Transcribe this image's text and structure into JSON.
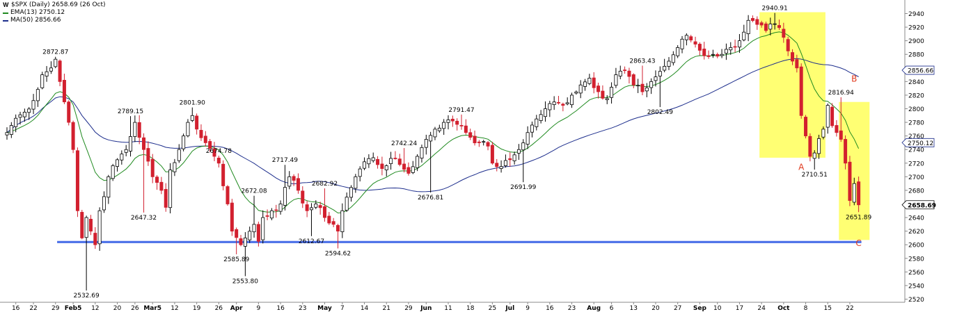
{
  "header": {
    "title": "$SPX (Daily) 2658.69 (26 Oct)",
    "ema_label": "EMA(13) 2750.12",
    "ma_label": "MA(50) 2856.66",
    "chart_icon": "chart-w-icon"
  },
  "colors": {
    "up_candle": "#000000",
    "down_candle": "#d2202f",
    "ema": "#1f8a1f",
    "ma": "#1c2d8c",
    "support_line": "#4a6fe8",
    "highlight": "#ffff5a",
    "annotation": "#e03a1e",
    "grid_axis": "#888888"
  },
  "chart_data": {
    "type": "candlestick",
    "title": "$SPX (Daily) 2658.69 (26 Oct)",
    "ylim": [
      2510,
      2950
    ],
    "y_ticks": [
      2520,
      2540,
      2560,
      2580,
      2600,
      2620,
      2640,
      2660,
      2680,
      2700,
      2720,
      2740,
      2760,
      2780,
      2800,
      2820,
      2840,
      2860,
      2880,
      2900,
      2920,
      2940
    ],
    "x_ticks": [
      {
        "i": 2,
        "label": "16"
      },
      {
        "i": 6,
        "label": "22"
      },
      {
        "i": 11,
        "label": "29"
      },
      {
        "i": 15,
        "label": "Feb5",
        "bold": true
      },
      {
        "i": 20,
        "label": "12"
      },
      {
        "i": 25,
        "label": "20"
      },
      {
        "i": 29,
        "label": "26"
      },
      {
        "i": 33,
        "label": "Mar5",
        "bold": true
      },
      {
        "i": 38,
        "label": "12"
      },
      {
        "i": 43,
        "label": "19"
      },
      {
        "i": 48,
        "label": "26"
      },
      {
        "i": 52,
        "label": "Apr",
        "bold": true
      },
      {
        "i": 57,
        "label": "9"
      },
      {
        "i": 62,
        "label": "16"
      },
      {
        "i": 67,
        "label": "23"
      },
      {
        "i": 72,
        "label": "May",
        "bold": true
      },
      {
        "i": 76,
        "label": "7"
      },
      {
        "i": 81,
        "label": "14"
      },
      {
        "i": 86,
        "label": "21"
      },
      {
        "i": 91,
        "label": "29"
      },
      {
        "i": 95,
        "label": "Jun",
        "bold": true
      },
      {
        "i": 100,
        "label": "11"
      },
      {
        "i": 105,
        "label": "18"
      },
      {
        "i": 110,
        "label": "25"
      },
      {
        "i": 114,
        "label": "Jul",
        "bold": true
      },
      {
        "i": 118,
        "label": "9"
      },
      {
        "i": 123,
        "label": "16"
      },
      {
        "i": 128,
        "label": "23"
      },
      {
        "i": 133,
        "label": "Aug",
        "bold": true
      },
      {
        "i": 137,
        "label": "6"
      },
      {
        "i": 142,
        "label": "13"
      },
      {
        "i": 147,
        "label": "20"
      },
      {
        "i": 152,
        "label": "27"
      },
      {
        "i": 157,
        "label": "Sep",
        "bold": true
      },
      {
        "i": 161,
        "label": "10"
      },
      {
        "i": 166,
        "label": "17"
      },
      {
        "i": 171,
        "label": "24"
      },
      {
        "i": 176,
        "label": "Oct",
        "bold": true
      },
      {
        "i": 181,
        "label": "8"
      },
      {
        "i": 186,
        "label": "15"
      },
      {
        "i": 191,
        "label": "22"
      }
    ],
    "anchors": [
      [
        0,
        2765
      ],
      [
        2,
        2786
      ],
      [
        4,
        2795
      ],
      [
        6,
        2812
      ],
      [
        8,
        2850
      ],
      [
        10,
        2860
      ],
      [
        11,
        2872.87
      ],
      [
        12,
        2840
      ],
      [
        14,
        2780
      ],
      [
        15,
        2740
      ],
      [
        16,
        2650
      ],
      [
        17,
        2610
      ],
      [
        18,
        2640
      ],
      [
        19,
        2620
      ],
      [
        20,
        2600
      ],
      [
        21,
        2650
      ],
      [
        23,
        2700
      ],
      [
        25,
        2725
      ],
      [
        27,
        2740
      ],
      [
        29,
        2780
      ],
      [
        31,
        2740
      ],
      [
        33,
        2700
      ],
      [
        35,
        2680
      ],
      [
        36,
        2655
      ],
      [
        37,
        2710
      ],
      [
        39,
        2740
      ],
      [
        41,
        2780
      ],
      [
        42,
        2790
      ],
      [
        43,
        2770
      ],
      [
        45,
        2750
      ],
      [
        47,
        2730
      ],
      [
        48,
        2720
      ],
      [
        50,
        2660
      ],
      [
        51,
        2620
      ],
      [
        53,
        2600
      ],
      [
        54,
        2610
      ],
      [
        56,
        2630
      ],
      [
        57,
        2605
      ],
      [
        58,
        2640
      ],
      [
        60,
        2650
      ],
      [
        62,
        2660
      ],
      [
        64,
        2700
      ],
      [
        66,
        2680
      ],
      [
        68,
        2650
      ],
      [
        70,
        2660
      ],
      [
        72,
        2640
      ],
      [
        74,
        2630
      ],
      [
        75,
        2620
      ],
      [
        76,
        2650
      ],
      [
        77,
        2670
      ],
      [
        79,
        2700
      ],
      [
        81,
        2722
      ],
      [
        83,
        2728
      ],
      [
        85,
        2712
      ],
      [
        87,
        2727
      ],
      [
        89,
        2718
      ],
      [
        91,
        2705
      ],
      [
        93,
        2730
      ],
      [
        95,
        2755
      ],
      [
        97,
        2770
      ],
      [
        99,
        2780
      ],
      [
        101,
        2782
      ],
      [
        103,
        2775
      ],
      [
        105,
        2758
      ],
      [
        107,
        2750
      ],
      [
        109,
        2745
      ],
      [
        110,
        2720
      ],
      [
        112,
        2715
      ],
      [
        114,
        2725
      ],
      [
        116,
        2740
      ],
      [
        118,
        2765
      ],
      [
        120,
        2785
      ],
      [
        122,
        2800
      ],
      [
        124,
        2810
      ],
      [
        126,
        2805
      ],
      [
        128,
        2820
      ],
      [
        130,
        2835
      ],
      [
        132,
        2845
      ],
      [
        134,
        2825
      ],
      [
        136,
        2815
      ],
      [
        138,
        2850
      ],
      [
        140,
        2857
      ],
      [
        142,
        2835
      ],
      [
        144,
        2825
      ],
      [
        146,
        2840
      ],
      [
        148,
        2855
      ],
      [
        150,
        2870
      ],
      [
        152,
        2890
      ],
      [
        154,
        2908
      ],
      [
        156,
        2895
      ],
      [
        158,
        2878
      ],
      [
        160,
        2880
      ],
      [
        162,
        2880
      ],
      [
        164,
        2890
      ],
      [
        166,
        2900
      ],
      [
        168,
        2930
      ],
      [
        170,
        2924
      ],
      [
        172,
        2915
      ],
      [
        174,
        2925
      ],
      [
        176,
        2905
      ],
      [
        177,
        2885
      ],
      [
        178,
        2870
      ],
      [
        179,
        2860
      ],
      [
        180,
        2790
      ],
      [
        181,
        2760
      ],
      [
        182,
        2730
      ],
      [
        183,
        2735
      ],
      [
        185,
        2770
      ],
      [
        186,
        2805
      ],
      [
        187,
        2775
      ],
      [
        188,
        2765
      ],
      [
        189,
        2755
      ],
      [
        190,
        2720
      ],
      [
        191,
        2665
      ],
      [
        192,
        2690
      ],
      [
        193,
        2658.69
      ]
    ],
    "candles_count": 194,
    "ema_label": "EMA(13) 2750.12",
    "ma_label": "MA(50) 2856.66",
    "last_close": 2658.69,
    "ema_last": 2750.12,
    "ma_last": 2856.66,
    "price_labels": [
      {
        "i": 11,
        "value": 2872.87,
        "label": "2872.87",
        "pos": "above"
      },
      {
        "i": 18,
        "value": 2532.69,
        "label": "2532.69",
        "pos": "below"
      },
      {
        "i": 28,
        "value": 2789.15,
        "label": "2789.15",
        "pos": "above"
      },
      {
        "i": 31,
        "value": 2647.32,
        "label": "2647.32",
        "pos": "below"
      },
      {
        "i": 42,
        "value": 2801.9,
        "label": "2801.90",
        "pos": "above"
      },
      {
        "i": 48,
        "value": 2674.78,
        "label": "2674.78",
        "pos": "above"
      },
      {
        "i": 52,
        "value": 2585.89,
        "label": "2585.89",
        "pos": "below"
      },
      {
        "i": 54,
        "value": 2553.8,
        "label": "2553.80",
        "pos": "below"
      },
      {
        "i": 56,
        "value": 2672.08,
        "label": "2672.08",
        "pos": "above"
      },
      {
        "i": 63,
        "value": 2717.49,
        "label": "2717.49",
        "pos": "above"
      },
      {
        "i": 69,
        "value": 2612.67,
        "label": "2612.67",
        "pos": "below"
      },
      {
        "i": 72,
        "value": 2682.92,
        "label": "2682.92",
        "pos": "above"
      },
      {
        "i": 75,
        "value": 2594.62,
        "label": "2594.62",
        "pos": "below"
      },
      {
        "i": 90,
        "value": 2742.24,
        "label": "2742.24",
        "pos": "above"
      },
      {
        "i": 96,
        "value": 2676.81,
        "label": "2676.81",
        "pos": "below"
      },
      {
        "i": 103,
        "value": 2791.47,
        "label": "2791.47",
        "pos": "above"
      },
      {
        "i": 117,
        "value": 2691.99,
        "label": "2691.99",
        "pos": "below"
      },
      {
        "i": 144,
        "value": 2863.43,
        "label": "2863.43",
        "pos": "above"
      },
      {
        "i": 148,
        "value": 2802.49,
        "label": "2802.49",
        "pos": "below"
      },
      {
        "i": 174,
        "value": 2940.91,
        "label": "2940.91",
        "pos": "above"
      },
      {
        "i": 183,
        "value": 2710.51,
        "label": "2710.51",
        "pos": "below"
      },
      {
        "i": 189,
        "value": 2816.94,
        "label": "2816.94",
        "pos": "above"
      },
      {
        "i": 193,
        "value": 2651.89,
        "label": "2651.89",
        "pos": "below"
      }
    ],
    "highlight_boxes": [
      {
        "i0": 171,
        "i1": 185,
        "y0": 2728,
        "y1": 2942
      },
      {
        "i0": 189,
        "i1": 195,
        "y0": 2607,
        "y1": 2810
      }
    ],
    "support_line": {
      "i0": 12,
      "i1": 193,
      "value": 2604
    },
    "annotations": [
      {
        "i": 180,
        "value": 2710,
        "label": "A"
      },
      {
        "i": 192,
        "value": 2840,
        "label": "B"
      },
      {
        "i": 193,
        "value": 2598,
        "label": "C"
      }
    ],
    "axis_tags": [
      {
        "value": 2856.66,
        "label": "2856.66",
        "bold": false
      },
      {
        "value": 2750.12,
        "label": "2750.12",
        "bold": false
      },
      {
        "value": 2658.69,
        "label": "2658.69",
        "bold": true
      }
    ]
  }
}
